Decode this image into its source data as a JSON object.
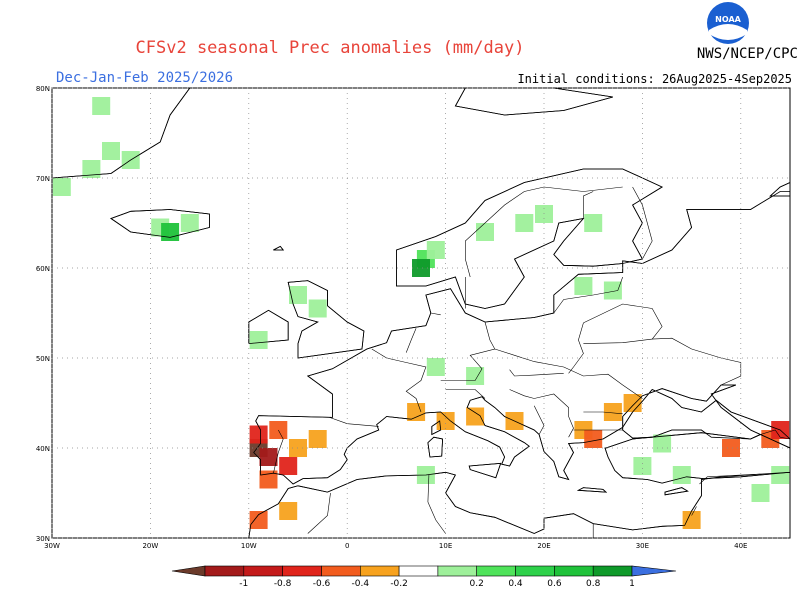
{
  "header": {
    "title": "CFSv2 seasonal Prec anomalies (mm/day)",
    "season": "Dec-Jan-Feb 2025/2026",
    "initial_conditions": "Initial conditions: 26Aug2025-4Sep2025",
    "agency": "NWS/NCEP/CPC",
    "logo_text": "NOAA"
  },
  "map": {
    "lon_range": [
      -30,
      45
    ],
    "lat_range": [
      30,
      80
    ],
    "lat_ticks": [
      {
        "value": 80,
        "label": "80N"
      },
      {
        "value": 70,
        "label": "70N"
      },
      {
        "value": 60,
        "label": "60N"
      },
      {
        "value": 50,
        "label": "50N"
      },
      {
        "value": 40,
        "label": "40N"
      },
      {
        "value": 30,
        "label": "30N"
      }
    ],
    "lon_ticks": [
      {
        "value": -30,
        "label": "30W"
      },
      {
        "value": -20,
        "label": "20W"
      },
      {
        "value": -10,
        "label": "10W"
      },
      {
        "value": 0,
        "label": "0"
      },
      {
        "value": 10,
        "label": "10E"
      },
      {
        "value": 20,
        "label": "20E"
      },
      {
        "value": 30,
        "label": "30E"
      },
      {
        "value": 40,
        "label": "40E"
      }
    ],
    "colors": {
      "d4": "#6b3a2a",
      "d3": "#a31a1a",
      "d2": "#e0241b",
      "d1": "#f25c1e",
      "d0": "#f7a21e",
      "w1": "#9ef09a",
      "w2": "#4fe35a",
      "w3": "#1fc23a",
      "w4": "#0f9a2a",
      "land": "#ffffff",
      "coast": "#000000",
      "grid": "#888888"
    },
    "anomaly_cells": [
      {
        "lon": -25,
        "lat": 78,
        "value": 0.3
      },
      {
        "lon": -24,
        "lat": 73,
        "value": 0.3
      },
      {
        "lon": -22,
        "lat": 72,
        "value": 0.3
      },
      {
        "lon": -26,
        "lat": 71,
        "value": 0.3
      },
      {
        "lon": -29,
        "lat": 69,
        "value": 0.3
      },
      {
        "lon": -19,
        "lat": 64.5,
        "value": 0.3
      },
      {
        "lon": -18,
        "lat": 64,
        "value": 0.7
      },
      {
        "lon": -16,
        "lat": 65,
        "value": 0.3
      },
      {
        "lon": 8,
        "lat": 61,
        "value": 0.5
      },
      {
        "lon": 7.5,
        "lat": 60,
        "value": 0.8
      },
      {
        "lon": 9,
        "lat": 62,
        "value": 0.3
      },
      {
        "lon": 14,
        "lat": 64,
        "value": 0.3
      },
      {
        "lon": 18,
        "lat": 65,
        "value": 0.3
      },
      {
        "lon": 20,
        "lat": 66,
        "value": 0.3
      },
      {
        "lon": 25,
        "lat": 65,
        "value": 0.3
      },
      {
        "lon": 24,
        "lat": 58,
        "value": 0.3
      },
      {
        "lon": 27,
        "lat": 57.5,
        "value": 0.3
      },
      {
        "lon": -3,
        "lat": 55.5,
        "value": 0.3
      },
      {
        "lon": -5,
        "lat": 57,
        "value": 0.3
      },
      {
        "lon": -9,
        "lat": 52,
        "value": 0.3
      },
      {
        "lon": 9,
        "lat": 49,
        "value": 0.3
      },
      {
        "lon": 13,
        "lat": 48,
        "value": 0.3
      },
      {
        "lon": 8,
        "lat": 37,
        "value": 0.3
      },
      {
        "lon": 30,
        "lat": 38,
        "value": 0.3
      },
      {
        "lon": 34,
        "lat": 37,
        "value": 0.3
      },
      {
        "lon": 32,
        "lat": 40.5,
        "value": 0.3
      },
      {
        "lon": 42,
        "lat": 35,
        "value": 0.3
      },
      {
        "lon": 44,
        "lat": 37,
        "value": 0.3
      },
      {
        "lon": -9,
        "lat": 40,
        "value": -1.1
      },
      {
        "lon": -8,
        "lat": 39,
        "value": -0.9
      },
      {
        "lon": -9,
        "lat": 41.5,
        "value": -0.7
      },
      {
        "lon": -7,
        "lat": 42,
        "value": -0.5
      },
      {
        "lon": -6,
        "lat": 38,
        "value": -0.7
      },
      {
        "lon": -5,
        "lat": 40,
        "value": -0.3
      },
      {
        "lon": -8,
        "lat": 36.5,
        "value": -0.5
      },
      {
        "lon": -3,
        "lat": 41,
        "value": -0.3
      },
      {
        "lon": -9,
        "lat": 32,
        "value": -0.5
      },
      {
        "lon": -6,
        "lat": 33,
        "value": -0.3
      },
      {
        "lon": 7,
        "lat": 44,
        "value": -0.3
      },
      {
        "lon": 10,
        "lat": 43,
        "value": -0.3
      },
      {
        "lon": 13,
        "lat": 43.5,
        "value": -0.3
      },
      {
        "lon": 17,
        "lat": 43,
        "value": -0.3
      },
      {
        "lon": 24,
        "lat": 42,
        "value": -0.3
      },
      {
        "lon": 27,
        "lat": 44,
        "value": -0.3
      },
      {
        "lon": 29,
        "lat": 45,
        "value": -0.3
      },
      {
        "lon": 25,
        "lat": 41,
        "value": -0.5
      },
      {
        "lon": 39,
        "lat": 40,
        "value": -0.5
      },
      {
        "lon": 43,
        "lat": 41,
        "value": -0.5
      },
      {
        "lon": 44,
        "lat": 42,
        "value": -0.7
      },
      {
        "lon": 35,
        "lat": 32,
        "value": -0.3
      }
    ],
    "legend": {
      "tick_labels": [
        "-1",
        "-0.8",
        "-0.6",
        "-0.4",
        "-0.2",
        "0.2",
        "0.4",
        "0.6",
        "0.8",
        "1"
      ],
      "colors": [
        "#6b3a2a",
        "#a31a1a",
        "#c41a1a",
        "#e0241b",
        "#f25c1e",
        "#f7a21e",
        "#ffffff",
        "#9ef09a",
        "#4fe35a",
        "#2ed14a",
        "#1fc23a",
        "#0f9a2a",
        "#3b6fe0"
      ]
    }
  }
}
